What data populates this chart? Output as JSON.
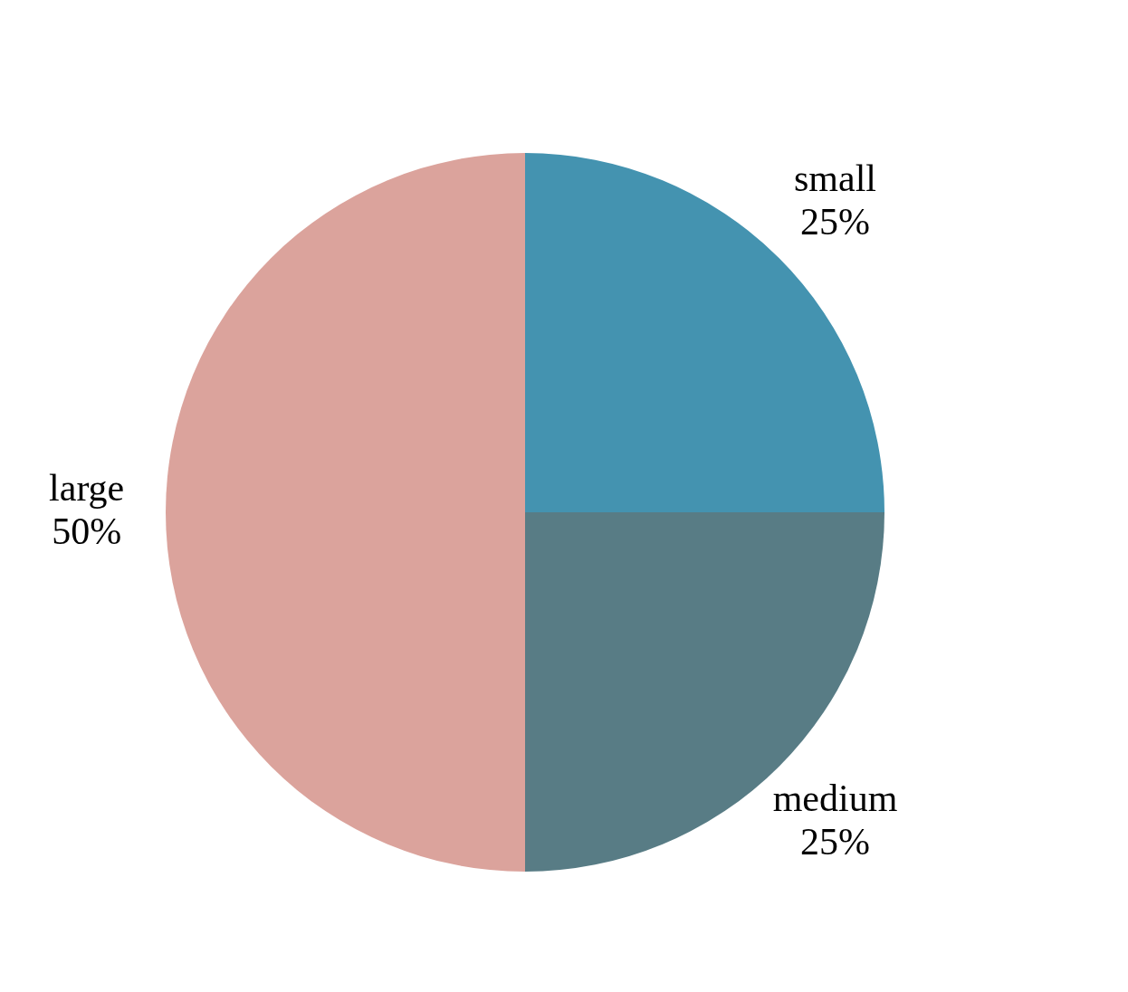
{
  "chart_data": {
    "type": "pie",
    "categories": [
      "small",
      "medium",
      "large"
    ],
    "values": [
      25,
      25,
      50
    ],
    "colors": [
      "#4493b0",
      "#587c85",
      "#dba39c"
    ],
    "value_labels": [
      "25%",
      "25%",
      "50%"
    ],
    "legend": false
  }
}
